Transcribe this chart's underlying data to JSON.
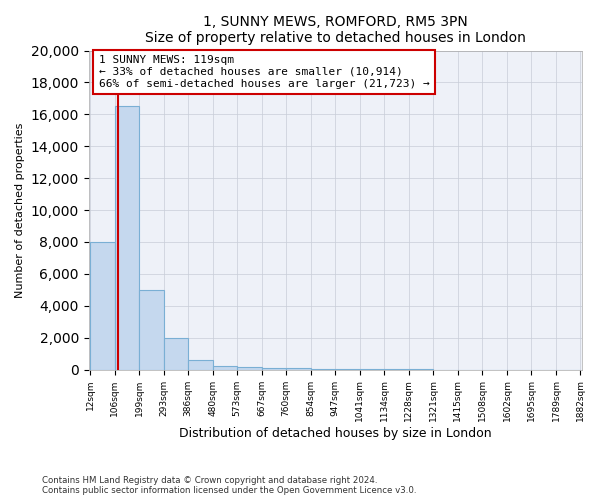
{
  "title1": "1, SUNNY MEWS, ROMFORD, RM5 3PN",
  "title2": "Size of property relative to detached houses in London",
  "xlabel": "Distribution of detached houses by size in London",
  "ylabel": "Number of detached properties",
  "bin_edges": [
    12,
    106,
    199,
    293,
    386,
    480,
    573,
    667,
    760,
    854,
    947,
    1041,
    1134,
    1228,
    1321,
    1415,
    1508,
    1602,
    1695,
    1789,
    1882
  ],
  "bin_labels": [
    "12sqm",
    "106sqm",
    "199sqm",
    "293sqm",
    "386sqm",
    "480sqm",
    "573sqm",
    "667sqm",
    "760sqm",
    "854sqm",
    "947sqm",
    "1041sqm",
    "1134sqm",
    "1228sqm",
    "1321sqm",
    "1415sqm",
    "1508sqm",
    "1602sqm",
    "1695sqm",
    "1789sqm",
    "1882sqm"
  ],
  "bar_heights": [
    8000,
    16500,
    5000,
    2000,
    600,
    250,
    150,
    100,
    75,
    50,
    30,
    15,
    10,
    7,
    5,
    3,
    2,
    2,
    1,
    1
  ],
  "bar_color": "#c5d8ee",
  "bar_edge_color": "#7aafd4",
  "property_size": 119,
  "vline_color": "#cc0000",
  "annotation_text": "1 SUNNY MEWS: 119sqm\n← 33% of detached houses are smaller (10,914)\n66% of semi-detached houses are larger (21,723) →",
  "annotation_box_color": "#ffffff",
  "annotation_box_edge": "#cc0000",
  "ylim": [
    0,
    20000
  ],
  "yticks": [
    0,
    2000,
    4000,
    6000,
    8000,
    10000,
    12000,
    14000,
    16000,
    18000,
    20000
  ],
  "footer1": "Contains HM Land Registry data © Crown copyright and database right 2024.",
  "footer2": "Contains public sector information licensed under the Open Government Licence v3.0.",
  "bg_color": "#ffffff",
  "plot_bg_color": "#eef1f8"
}
